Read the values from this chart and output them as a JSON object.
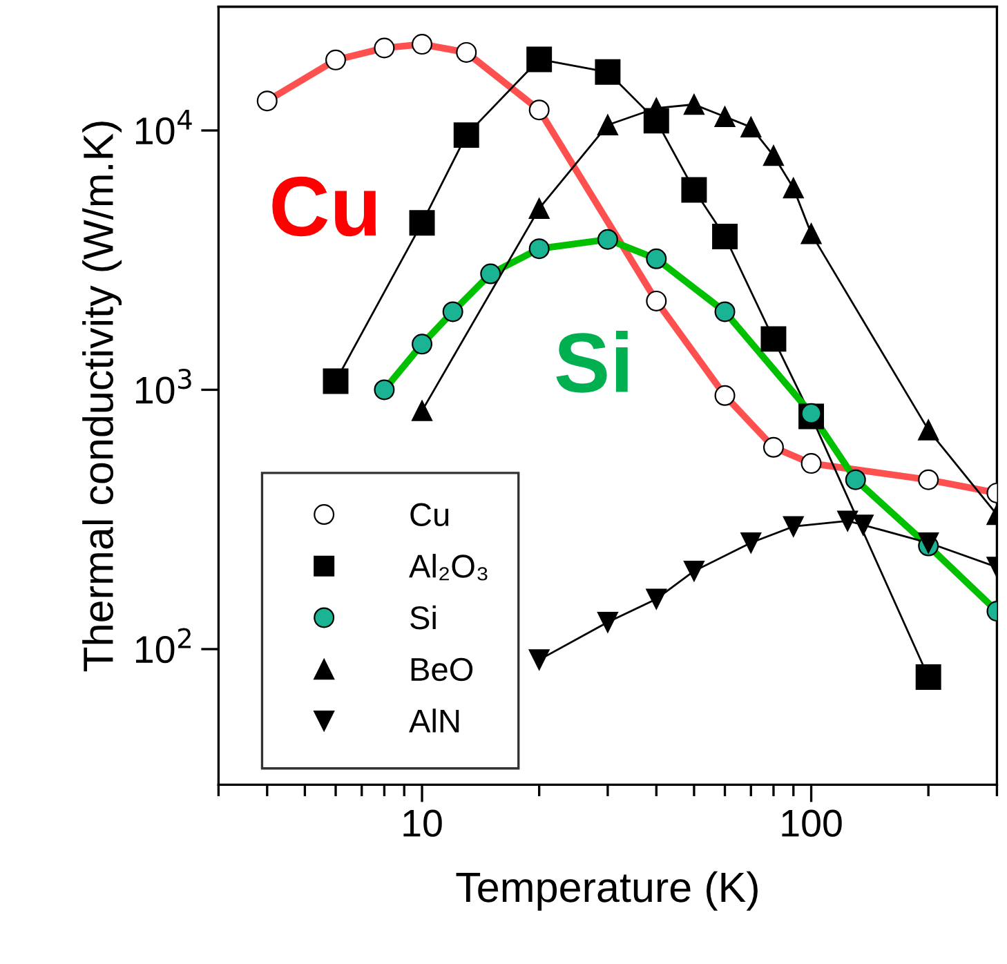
{
  "chart_data": {
    "type": "line",
    "xlabel": "Temperature (K)",
    "ylabel": "Thermal conductivity (W/m.K)",
    "log": "xy",
    "xlim": [
      3,
      300
    ],
    "ylim": [
      30,
      30000
    ],
    "xticks": [
      {
        "value": 3,
        "label": null
      },
      {
        "value": 4,
        "label": null
      },
      {
        "value": 5,
        "label": null
      },
      {
        "value": 6,
        "label": null
      },
      {
        "value": 7,
        "label": null
      },
      {
        "value": 8,
        "label": null
      },
      {
        "value": 9,
        "label": null
      },
      10,
      {
        "value": 20,
        "label": null
      },
      {
        "value": 30,
        "label": null
      },
      {
        "value": 40,
        "label": null
      },
      {
        "value": 50,
        "label": null
      },
      {
        "value": 60,
        "label": null
      },
      {
        "value": 70,
        "label": null
      },
      {
        "value": 80,
        "label": null
      },
      {
        "value": 90,
        "label": null
      },
      100,
      {
        "value": 200,
        "label": null
      },
      {
        "value": 300,
        "label": null
      }
    ],
    "yticks": [
      {
        "value": 100,
        "label": "10$^{2}$"
      },
      {
        "value": 1000,
        "label": "10$^{3}$"
      },
      {
        "value": 10000,
        "label": "10$^{4}$"
      }
    ],
    "grid": false,
    "legend": "bottom left",
    "series": [
      {
        "name": "Cu",
        "color": "#ff5050",
        "marker": "circle",
        "x": [
          4,
          6,
          8,
          10,
          13,
          20,
          40,
          60,
          80,
          100,
          200,
          300
        ],
        "values": [
          13000,
          18700,
          20800,
          21500,
          20000,
          12000,
          2200,
          950,
          600,
          520,
          450,
          400
        ],
        "colors": [
          "#ffffff",
          "#ffffff",
          "#ffffff",
          "#ffffff",
          "#ffffff",
          "#ffffff",
          "#ffffff",
          "#ffffff",
          "#ffffff",
          "#ffffff",
          "#ffffff",
          "#ffffff"
        ]
      },
      {
        "name": "Al₂O₃",
        "color": "#000000",
        "marker": "square",
        "x": [
          6,
          10,
          13,
          20,
          30,
          40,
          50,
          60,
          80,
          100,
          200
        ],
        "values": [
          1080,
          4400,
          9600,
          18800,
          16800,
          10900,
          5900,
          3900,
          1570,
          790,
          78
        ]
      },
      {
        "name": "Si",
        "color": "#00c000",
        "marker": "circle",
        "x": [
          8,
          10,
          12,
          15,
          20,
          30,
          40,
          60,
          100,
          130,
          200,
          300
        ],
        "values": [
          1000,
          1500,
          2000,
          2800,
          3500,
          3800,
          3200,
          2000,
          810,
          450,
          250,
          140
        ],
        "colors": [
          "#1ab394",
          "#1ab394",
          "#1ab394",
          "#1ab394",
          "#1ab394",
          "#1ab394",
          "#1ab394",
          "#1ab394",
          "#1ab394",
          "#1ab394",
          "#1ab394",
          "#1ab394"
        ]
      },
      {
        "name": "BeO",
        "color": "#000000",
        "marker": "triangle",
        "x": [
          10,
          20,
          30,
          40,
          50,
          60,
          70,
          80,
          90,
          100,
          200,
          300
        ],
        "values": [
          830,
          5000,
          10500,
          12200,
          12600,
          11300,
          10300,
          8000,
          6000,
          4000,
          700,
          330
        ]
      },
      {
        "name": "AlN",
        "color": "#000000",
        "marker": "triangle_down",
        "x": [
          20,
          30,
          40,
          50,
          70,
          90,
          124,
          136,
          200,
          300
        ],
        "values": [
          91,
          127,
          156,
          200,
          257,
          297,
          312,
          301,
          257,
          207
        ]
      }
    ],
    "annotations": [
      "Cu",
      "Si"
    ]
  }
}
